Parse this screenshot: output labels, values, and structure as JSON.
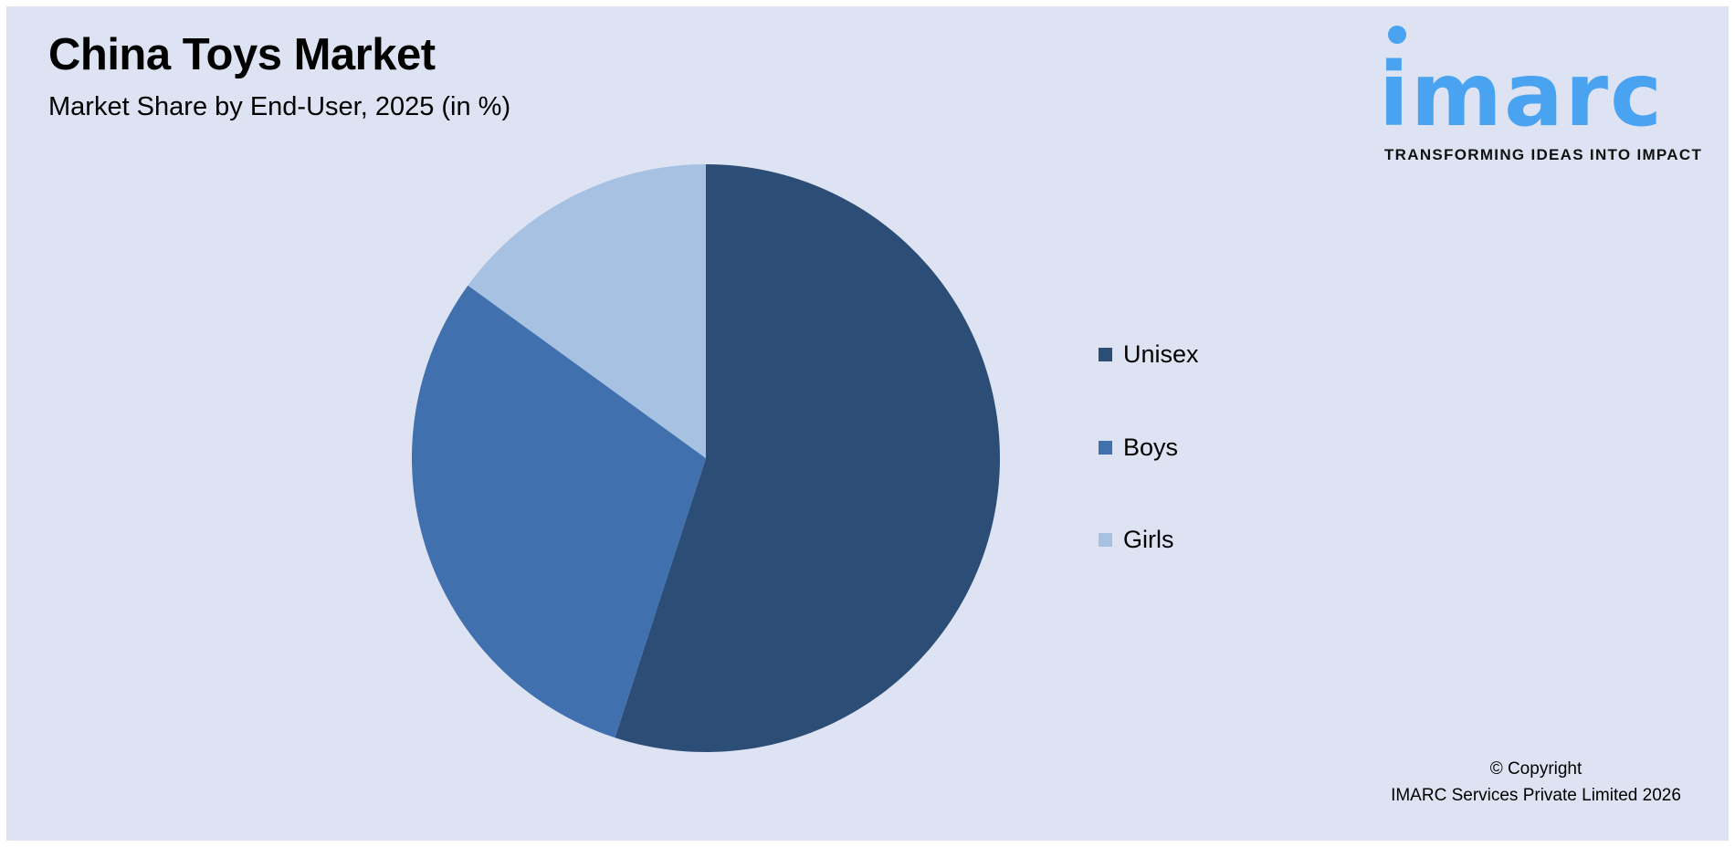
{
  "header": {
    "title": "China Toys Market",
    "subtitle": "Market Share by End-User, 2025 (in %)"
  },
  "logo": {
    "wordmark": "imarc",
    "tagline": "TRANSFORMING IDEAS INTO IMPACT",
    "color": "#4aa3f0"
  },
  "chart_data": {
    "type": "pie",
    "title": "China Toys Market",
    "subtitle": "Market Share by End-User, 2025 (in %)",
    "categories": [
      "Unisex",
      "Boys",
      "Girls"
    ],
    "values": [
      55,
      30,
      15
    ],
    "colors": [
      "#2c4d75",
      "#4071ae",
      "#a6c1e2"
    ],
    "start_angle": "12 o'clock, clockwise",
    "legend_position": "right"
  },
  "legend": {
    "items": [
      {
        "label": "Unisex",
        "color": "#2c4d75"
      },
      {
        "label": "Boys",
        "color": "#4071ae"
      },
      {
        "label": "Girls",
        "color": "#a6c1e2"
      }
    ]
  },
  "footer": {
    "copyright": "© Copyright",
    "company": "IMARC Services Private Limited 2026"
  }
}
